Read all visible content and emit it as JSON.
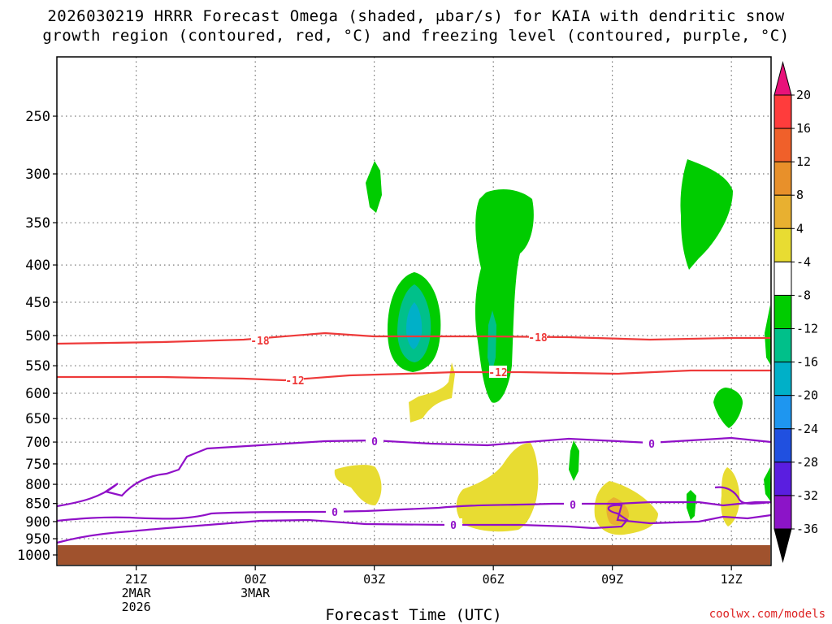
{
  "title_line1": "2026030219 HRRR Forecast Omega (shaded, μbar/s) for KAIA with dendritic snow",
  "title_line2": "growth region (contoured, red, °C) and freezing level (contoured, purple, °C)",
  "xlabel": "Forecast Time (UTC)",
  "credit": "coolwx.com/models",
  "chart_data": {
    "type": "heatmap",
    "title": "2026030219 HRRR Forecast Omega (shaded, μbar/s) for KAIA with dendritic snow growth region (contoured, red, °C) and freezing level (contoured, purple, °C)",
    "xlabel": "Forecast Time (UTC)",
    "ylabel": "",
    "x_range_hours_utc": [
      "2026-03-02T19:00Z",
      "2026-03-03T13:00Z"
    ],
    "x_ticks": [
      {
        "time": "2026-03-02T21:00Z",
        "lines": [
          "21Z",
          "2MAR",
          "2026"
        ]
      },
      {
        "time": "2026-03-03T00:00Z",
        "lines": [
          "00Z",
          "3MAR"
        ]
      },
      {
        "time": "2026-03-03T03:00Z",
        "lines": [
          "03Z"
        ]
      },
      {
        "time": "2026-03-03T06:00Z",
        "lines": [
          "06Z"
        ]
      },
      {
        "time": "2026-03-03T09:00Z",
        "lines": [
          "09Z"
        ]
      },
      {
        "time": "2026-03-03T12:00Z",
        "lines": [
          "12Z"
        ]
      }
    ],
    "y_axis": {
      "scale": "log-pressure",
      "range_mb": [
        1000,
        200
      ],
      "ticks": [
        250,
        300,
        350,
        400,
        450,
        500,
        550,
        600,
        650,
        700,
        750,
        800,
        850,
        900,
        950,
        1000
      ]
    },
    "grid": "dotted",
    "colorbar": {
      "levels": [
        20,
        16,
        12,
        8,
        4,
        -4,
        -8,
        -12,
        -16,
        -20,
        -24,
        -28,
        -32,
        -36
      ],
      "colors": [
        "#ff3c3c",
        "#f0602a",
        "#e8902a",
        "#e8b030",
        "#e8dc32",
        "#ffffff",
        "#00cc00",
        "#00c08a",
        "#00b0c8",
        "#1e96f0",
        "#2050e0",
        "#5a1ee0",
        "#8c14c8",
        "#aaaaaa"
      ],
      "over_color": "#e8127a",
      "under_color": "#000000"
    },
    "omega_regions": [
      {
        "category": "-8 to -4",
        "color": "#00cc00",
        "time": "2026-03-03T03:00Z",
        "p_top": 288,
        "p_bottom": 340
      },
      {
        "category": "-8 to -4",
        "color": "#00cc00",
        "time": "2026-03-03T04:00Z",
        "p_top": 420,
        "p_bottom": 565
      },
      {
        "category": "-12 to -8",
        "color": "#00c08a",
        "time": "2026-03-03T04:00Z",
        "p_top": 450,
        "p_bottom": 545
      },
      {
        "category": "-16 to -12",
        "color": "#00b0c8",
        "time": "2026-03-03T04:00Z",
        "p_top": 470,
        "p_bottom": 525
      },
      {
        "category": "-8 to -4",
        "color": "#00cc00",
        "time": "2026-03-03T06:00Z",
        "p_top": 320,
        "p_bottom": 625
      },
      {
        "category": "-12 to -8",
        "color": "#00c08a",
        "time": "2026-03-03T06:00Z",
        "p_top": 480,
        "p_bottom": 550
      },
      {
        "category": "-8 to -4",
        "color": "#00cc00",
        "time": "2026-03-03T08:00Z",
        "p_top": 740,
        "p_bottom": 820
      },
      {
        "category": "-8 to -4",
        "color": "#00cc00",
        "time": "2026-03-03T11:00Z",
        "p_top": 285,
        "p_bottom": 410
      },
      {
        "category": "-8 to -4",
        "color": "#00cc00",
        "time": "2026-03-03T11:00Z",
        "p_top": 840,
        "p_bottom": 890
      },
      {
        "category": "-8 to -4",
        "color": "#00cc00",
        "time": "2026-03-03T12:00Z",
        "p_top": 615,
        "p_bottom": 680
      },
      {
        "category": "-8 to -4",
        "color": "#00cc00",
        "time": "2026-03-03T13:00Z",
        "p_top": 420,
        "p_bottom": 550
      },
      {
        "category": "-8 to -4",
        "color": "#00cc00",
        "time": "2026-03-03T13:00Z",
        "p_top": 770,
        "p_bottom": 860
      },
      {
        "category": "4 to 8",
        "color": "#e8dc32",
        "time": "2026-03-03T02:00Z",
        "p_top": 770,
        "p_bottom": 870
      },
      {
        "category": "4 to 8",
        "color": "#e8dc32",
        "time": "2026-03-03T04:00Z",
        "p_top": 545,
        "p_bottom": 660
      },
      {
        "category": "4 to 8",
        "color": "#e8dc32",
        "time": "2026-03-03T06:00Z",
        "p_top": 710,
        "p_bottom": 960
      },
      {
        "category": "4 to 8",
        "color": "#e8dc32",
        "time": "2026-03-03T09:00Z",
        "p_top": 830,
        "p_bottom": 965
      },
      {
        "category": "8 to 12",
        "color": "#e8b030",
        "time": "2026-03-03T09:00Z",
        "p_top": 870,
        "p_bottom": 930
      },
      {
        "category": "4 to 8",
        "color": "#e8dc32",
        "time": "2026-03-03T12:00Z",
        "p_top": 770,
        "p_bottom": 940
      }
    ],
    "contours": [
      {
        "name": "-18",
        "color": "#ee3a3a",
        "points_time_p": [
          [
            "19Z",
            515
          ],
          [
            "21Z",
            513
          ],
          [
            "23Z",
            510
          ],
          [
            "01Z",
            504
          ],
          [
            "03Z",
            507
          ],
          [
            "05Z",
            507
          ],
          [
            "07Z",
            507
          ],
          [
            "09Z",
            510
          ],
          [
            "11Z",
            508
          ],
          [
            "13Z",
            508
          ]
        ]
      },
      {
        "name": "-12",
        "color": "#ee3a3a",
        "points_time_p": [
          [
            "19Z",
            578
          ],
          [
            "21Z",
            577
          ],
          [
            "23Z",
            580
          ],
          [
            "01Z",
            582
          ],
          [
            "03Z",
            575
          ],
          [
            "05Z",
            572
          ],
          [
            "07Z",
            568
          ],
          [
            "09Z",
            570
          ],
          [
            "11Z",
            565
          ],
          [
            "13Z",
            565
          ]
        ]
      },
      {
        "name": "0",
        "color": "#9010c8",
        "points_time_p": [
          [
            "19Z",
            865
          ],
          [
            "21Z",
            800
          ],
          [
            "22Z",
            765
          ],
          [
            "00Z",
            727
          ],
          [
            "03Z",
            705
          ],
          [
            "06Z",
            712
          ],
          [
            "08Z",
            703
          ],
          [
            "10Z",
            715
          ],
          [
            "12Z",
            700
          ],
          [
            "13Z",
            710
          ]
        ]
      },
      {
        "name": "0",
        "color": "#9010c8",
        "points_time_p": [
          [
            "19Z",
            915
          ],
          [
            "21Z",
            906
          ],
          [
            "00Z",
            890
          ],
          [
            "03Z",
            885
          ],
          [
            "06Z",
            868
          ],
          [
            "09Z",
            870
          ],
          [
            "12Z",
            865
          ],
          [
            "13Z",
            862
          ]
        ]
      },
      {
        "name": "0",
        "color": "#9010c8",
        "points_time_p": [
          [
            "19Z",
            970
          ],
          [
            "21Z",
            945
          ],
          [
            "00Z",
            925
          ],
          [
            "03Z",
            925
          ],
          [
            "06Z",
            925
          ],
          [
            "09Z",
            925
          ],
          [
            "12Z",
            915
          ],
          [
            "13Z",
            915
          ]
        ]
      }
    ]
  }
}
